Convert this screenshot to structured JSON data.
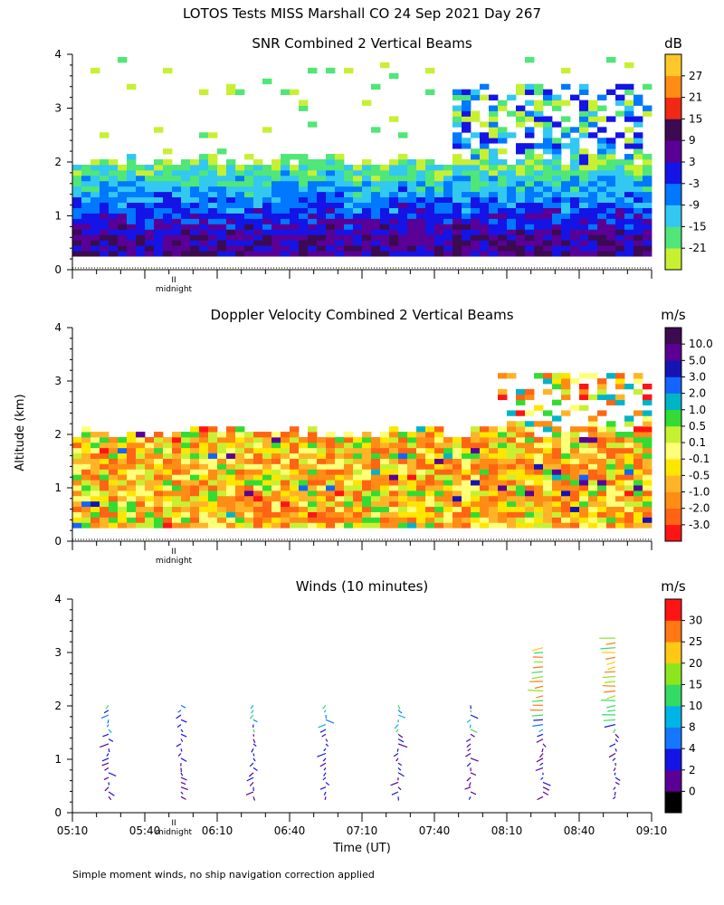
{
  "figure_title": "LOTOS Tests MISS Marshall CO  24 Sep 2021 Day 267",
  "y_axis_title": "Altitude (km)",
  "x_axis_title": "Time (UT)",
  "footnote": "Simple moment winds, no ship navigation correction applied",
  "midnight_label": "midnight",
  "midnight_mark": "II",
  "chart_data": [
    {
      "type": "heatmap",
      "title": "SNR Combined 2 Vertical Beams",
      "unit": "dB",
      "ylabel": "Altitude (km)",
      "ylim": [
        0,
        4
      ],
      "yticks": [
        "0",
        "1",
        "2",
        "3",
        "4"
      ],
      "colorbar": {
        "labels": [
          "-21",
          "-15",
          "-9",
          "-3",
          "3",
          "9",
          "15",
          "21",
          "27"
        ],
        "colors": [
          "#c8f032",
          "#50e678",
          "#32c8f0",
          "#0078ff",
          "#1414e6",
          "#5a0096",
          "#3c0a50",
          "#f02814",
          "#ff8c14",
          "#ffc828"
        ]
      }
    },
    {
      "type": "heatmap",
      "title": "Doppler Velocity Combined 2 Vertical Beams",
      "unit": "m/s",
      "ylabel": "Altitude (km)",
      "ylim": [
        0,
        4
      ],
      "yticks": [
        "0",
        "1",
        "2",
        "3",
        "4"
      ],
      "colorbar": {
        "labels": [
          "-3.0",
          "-2.0",
          "-1.0",
          "-0.5",
          "-0.1",
          "0.1",
          "0.5",
          "1.0",
          "2.0",
          "3.0",
          "5.0",
          "10.0"
        ],
        "colors": [
          "#ff1414",
          "#ff6414",
          "#ff8c14",
          "#ffb428",
          "#ffe600",
          "#ffff78",
          "#c8f032",
          "#32dc32",
          "#00b4c8",
          "#1464ff",
          "#1414b4",
          "#5a0096",
          "#3c0a50"
        ]
      }
    },
    {
      "type": "scatter",
      "title": "Winds (10 minutes)",
      "unit": "m/s",
      "ylabel": "Altitude (km)",
      "ylim": [
        0,
        4
      ],
      "yticks": [
        "0",
        "1",
        "2",
        "3",
        "4"
      ],
      "xlabel": "Time (UT)",
      "xticks": [
        "05:10",
        "05:40",
        "06:10",
        "06:40",
        "07:10",
        "07:40",
        "08:10",
        "08:40",
        "09:10"
      ],
      "colorbar": {
        "labels": [
          "0",
          "2",
          "4",
          "8",
          "10",
          "15",
          "20",
          "25",
          "30"
        ],
        "colors": [
          "#000000",
          "#5a0096",
          "#1414e6",
          "#1478ff",
          "#00b4e6",
          "#32dc64",
          "#8ce61e",
          "#ffc814",
          "#ff7814",
          "#ff1414"
        ]
      },
      "profile_times": [
        "05:25",
        "05:55",
        "06:25",
        "06:55",
        "07:25",
        "07:55",
        "08:25",
        "08:55"
      ]
    }
  ]
}
